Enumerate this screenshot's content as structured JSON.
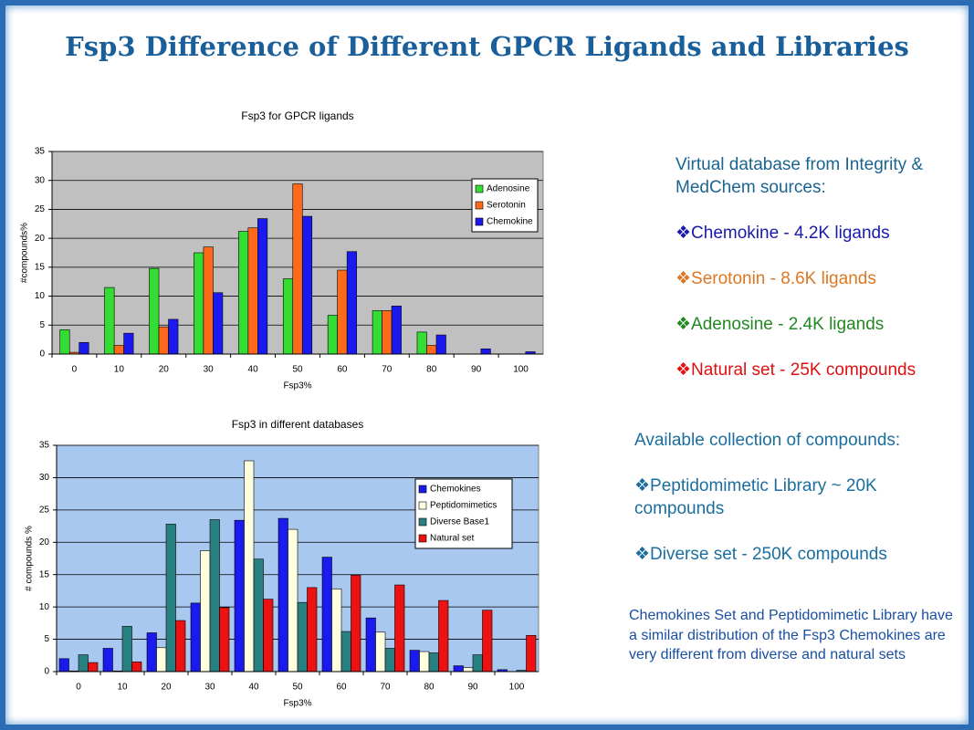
{
  "slide": {
    "title": "Fsp3 Difference of Different GPCR Ligands and Libraries",
    "info_panel": {
      "heading": "Virtual database from Integrity & MedChem sources:",
      "items": [
        "❖Chemokine - 4.2K ligands",
        "❖Serotonin -  8.6K ligands",
        "❖Adenosine -  2.4K ligands",
        "❖Natural set - 25K compounds"
      ]
    },
    "collection_panel": {
      "heading": "Available collection of compounds:",
      "items": [
        "❖Peptidomimetic Library ~ 20K compounds",
        "❖Diverse set -  250K compounds"
      ]
    },
    "note": "Chemokines Set and Peptidomimetic Library have a similar distribution of the Fsp3 Chemokines are very different from diverse and  natural sets"
  },
  "chart_data": [
    {
      "type": "bar",
      "title": "Fsp3 for GPCR ligands",
      "x_label": "Fsp3%",
      "y_label": "#compounds%",
      "categories": [
        "0",
        "10",
        "20",
        "30",
        "40",
        "50",
        "60",
        "70",
        "80",
        "90",
        "100"
      ],
      "series": [
        {
          "name": "Adenosine",
          "color": "#33dd33",
          "values": [
            4.2,
            11.5,
            14.8,
            17.5,
            21.2,
            13,
            6.7,
            7.5,
            3.8,
            0,
            0
          ]
        },
        {
          "name": "Serotonin",
          "color": "#ff6a1a",
          "values": [
            0.3,
            1.5,
            4.7,
            18.5,
            21.8,
            29.4,
            14.5,
            7.5,
            1.5,
            0,
            0
          ]
        },
        {
          "name": "Chemokine",
          "color": "#1a1aee",
          "values": [
            2,
            3.6,
            6,
            10.6,
            23.4,
            23.8,
            17.7,
            8.3,
            3.3,
            0.9,
            0.4
          ]
        }
      ],
      "ylim": [
        0,
        35
      ],
      "yticks": [
        0,
        5,
        10,
        15,
        20,
        25,
        30,
        35
      ],
      "grid": true,
      "legend": "upper right",
      "background": "#c0c0c0"
    },
    {
      "type": "bar",
      "title": "Fsp3 in different databases",
      "x_label": "Fsp3%",
      "y_label": "# compounds %",
      "categories": [
        "0",
        "10",
        "20",
        "30",
        "40",
        "50",
        "60",
        "70",
        "80",
        "90",
        "100"
      ],
      "series": [
        {
          "name": "Chemokines",
          "color": "#1a1aee",
          "values": [
            2,
            3.6,
            6,
            10.6,
            23.4,
            23.7,
            17.7,
            8.3,
            3.3,
            0.9,
            0.3
          ]
        },
        {
          "name": "Peptidomimetics",
          "color": "#ffffdd",
          "values": [
            0.1,
            0.1,
            3.7,
            18.7,
            32.6,
            22,
            12.8,
            6.1,
            3.1,
            0.6,
            0
          ]
        },
        {
          "name": "Diverse Base1",
          "color": "#2a8080",
          "values": [
            2.6,
            7,
            22.8,
            23.5,
            17.4,
            10.7,
            6.2,
            3.6,
            2.9,
            2.6,
            0.2
          ]
        },
        {
          "name": "Natural set",
          "color": "#ee1111",
          "values": [
            1.4,
            1.5,
            7.9,
            9.9,
            11.2,
            13,
            14.9,
            13.4,
            11,
            9.5,
            5.6
          ]
        }
      ],
      "ylim": [
        0,
        35
      ],
      "yticks": [
        0,
        5,
        10,
        15,
        20,
        25,
        30,
        35
      ],
      "grid": true,
      "legend": "upper right",
      "background": "#a9c8f0"
    }
  ]
}
